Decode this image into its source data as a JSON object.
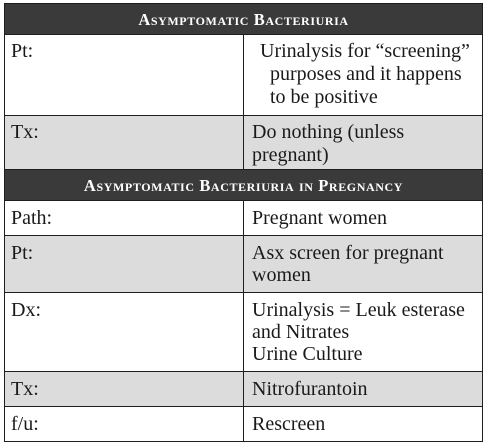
{
  "table1": {
    "title": "Asymptomatic Bacteriuria",
    "rows": [
      {
        "label": "Pt:",
        "text": "Urinalysis for “screening” purposes and it happens to be positive"
      },
      {
        "label": "Tx:",
        "text": "Do nothing (unless pregnant)"
      }
    ]
  },
  "table2": {
    "title": "Asymptomatic Bacteriuria in Pregnancy",
    "rows": [
      {
        "label": "Path:",
        "text": "Pregnant women"
      },
      {
        "label": "Pt:",
        "text": "Asx screen for pregnant women"
      },
      {
        "label": "Dx:",
        "line1": "Urinalysis = Leuk esterase and Nitrates",
        "line2": "Urine Culture"
      },
      {
        "label": "Tx:",
        "text": "Nitrofurantoin"
      },
      {
        "label": "f/u:",
        "text": "Rescreen"
      }
    ]
  }
}
